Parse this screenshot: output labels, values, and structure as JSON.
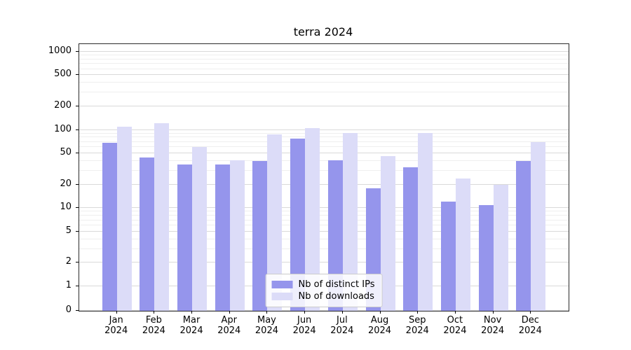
{
  "chart_data": {
    "type": "bar",
    "title": "terra 2024",
    "categories": [
      "Jan",
      "Feb",
      "Mar",
      "Apr",
      "May",
      "Jun",
      "Jul",
      "Aug",
      "Sep",
      "Oct",
      "Nov",
      "Dec"
    ],
    "year": "2024",
    "series": [
      {
        "name": "Nb of distinct IPs",
        "color": "#9595ec",
        "values": [
          68,
          44,
          36,
          36,
          40,
          78,
          41,
          18,
          33,
          12,
          11,
          40
        ]
      },
      {
        "name": "Nb of downloads",
        "color": "#dcdcf8",
        "values": [
          110,
          122,
          60,
          41,
          88,
          105,
          92,
          46,
          92,
          24,
          20,
          70
        ]
      }
    ],
    "yticks": [
      0,
      1,
      2,
      5,
      10,
      20,
      50,
      100,
      200,
      500,
      1000
    ],
    "scale": "symlog",
    "ylim": [
      0,
      1250
    ],
    "grid": true,
    "legend_position": "bottom-center"
  }
}
